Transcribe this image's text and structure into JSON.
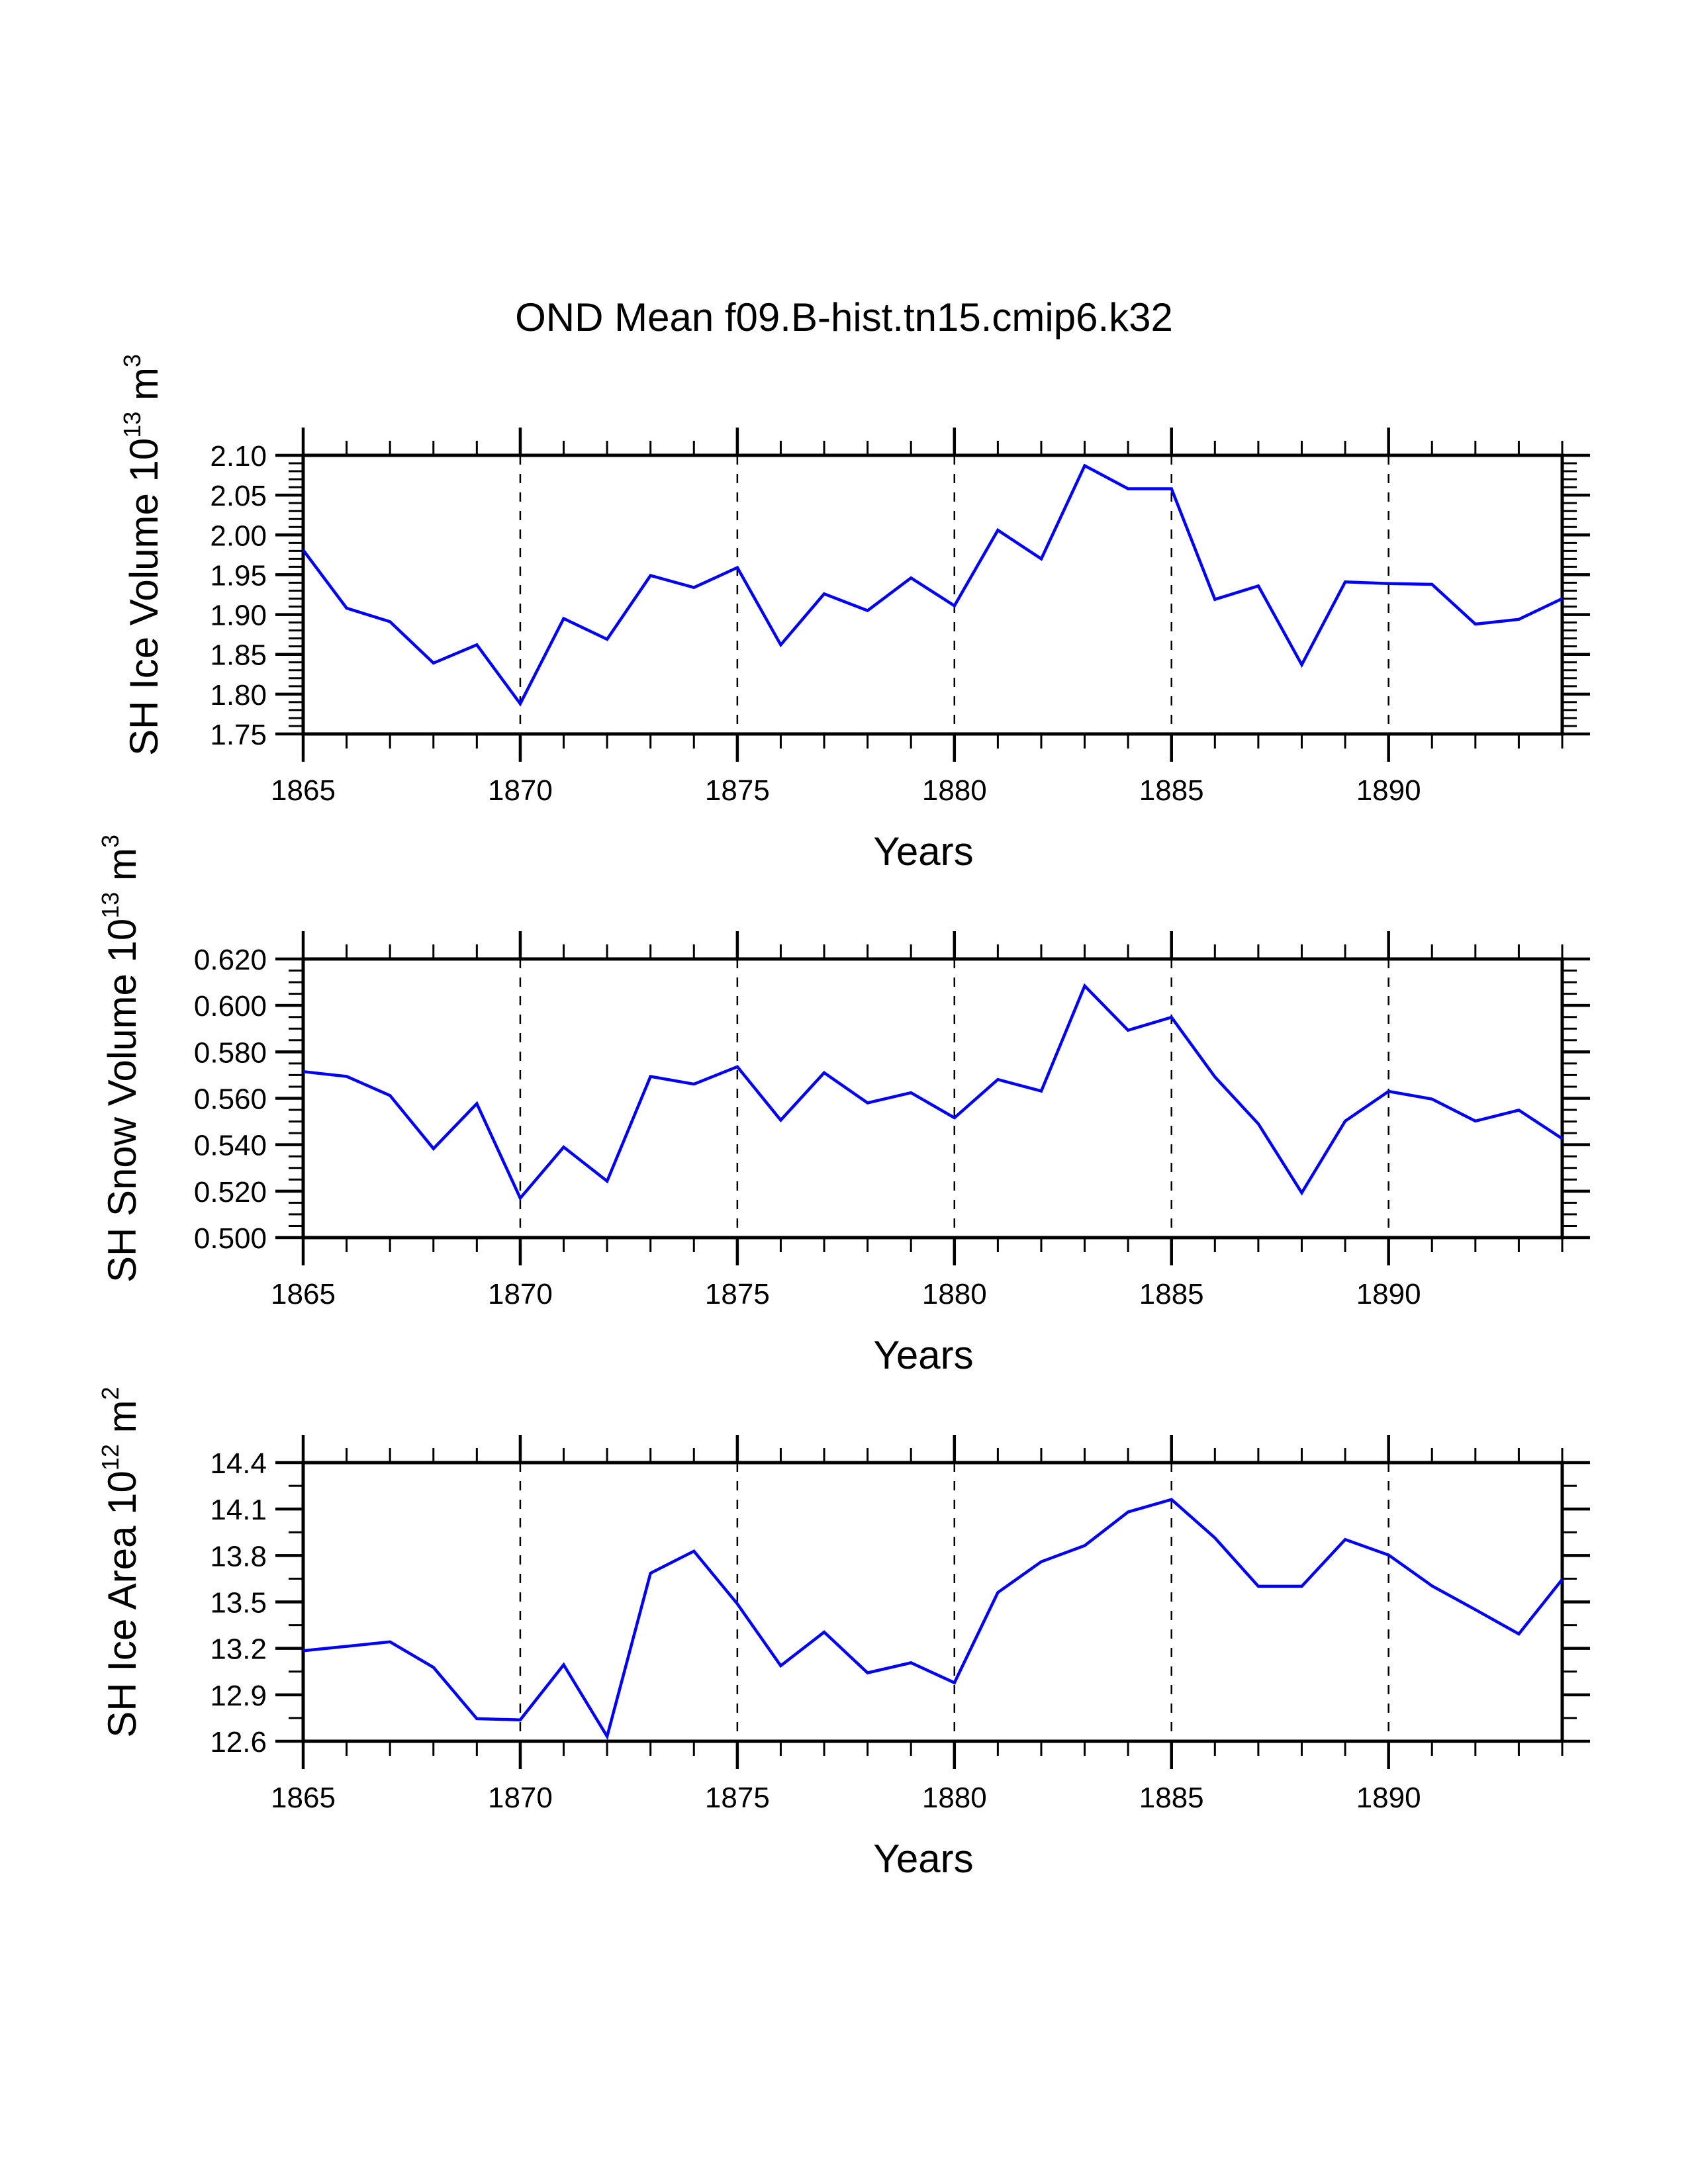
{
  "figure": {
    "title": "OND Mean f09.B-hist.tn15.cmip6.k32"
  },
  "chart_data": [
    {
      "type": "line",
      "panel": "sh-ice-volume",
      "title": "OND Mean f09.B-hist.tn15.cmip6.k32",
      "xlabel": "Years",
      "ylabel": {
        "text": "SH Ice Volume 10",
        "exponent": "13",
        "unit": " m",
        "unit_exponent": "3"
      },
      "xlim": [
        1865,
        1894
      ],
      "ylim": [
        1.75,
        2.1
      ],
      "xticks": [
        "1865",
        "1870",
        "1875",
        "1880",
        "1885",
        "1890"
      ],
      "xtick_values": [
        1865,
        1870,
        1875,
        1880,
        1885,
        1890
      ],
      "xminor_step": 1,
      "yticks": [
        "1.75",
        "1.80",
        "1.85",
        "1.90",
        "1.95",
        "2.00",
        "2.05",
        "2.10"
      ],
      "ytick_values": [
        1.75,
        1.8,
        1.85,
        1.9,
        1.95,
        2.0,
        2.05,
        2.1
      ],
      "yminor_per_major": 5,
      "grid": "dashed vertical lines at major x ticks",
      "line_color": "#0000ff",
      "x": [
        1865,
        1866,
        1867,
        1868,
        1869,
        1870,
        1871,
        1872,
        1873,
        1874,
        1875,
        1876,
        1877,
        1878,
        1879,
        1880,
        1881,
        1882,
        1883,
        1884,
        1885,
        1886,
        1887,
        1888,
        1889,
        1890,
        1891,
        1892,
        1893,
        1894
      ],
      "values": [
        1.981,
        1.908,
        1.891,
        1.839,
        1.862,
        1.788,
        1.895,
        1.869,
        1.949,
        1.934,
        1.959,
        1.862,
        1.926,
        1.905,
        1.946,
        1.911,
        2.006,
        1.97,
        2.087,
        2.058,
        2.058,
        1.919,
        1.936,
        1.837,
        1.941,
        1.939,
        1.938,
        1.888,
        1.894,
        1.92
      ]
    },
    {
      "type": "line",
      "panel": "sh-snow-volume",
      "xlabel": "Years",
      "ylabel": {
        "text": "SH Snow Volume 10",
        "exponent": "13",
        "unit": " m",
        "unit_exponent": "3"
      },
      "xlim": [
        1865,
        1894
      ],
      "ylim": [
        0.5,
        0.62
      ],
      "xticks": [
        "1865",
        "1870",
        "1875",
        "1880",
        "1885",
        "1890"
      ],
      "xtick_values": [
        1865,
        1870,
        1875,
        1880,
        1885,
        1890
      ],
      "xminor_step": 1,
      "yticks": [
        "0.500",
        "0.520",
        "0.540",
        "0.560",
        "0.580",
        "0.600",
        "0.620"
      ],
      "ytick_values": [
        0.5,
        0.52,
        0.54,
        0.56,
        0.58,
        0.6,
        0.62
      ],
      "yminor_per_major": 4,
      "grid": "dashed vertical lines at major x ticks",
      "line_color": "#0000ff",
      "x": [
        1865,
        1866,
        1867,
        1868,
        1869,
        1870,
        1871,
        1872,
        1873,
        1874,
        1875,
        1876,
        1877,
        1878,
        1879,
        1880,
        1881,
        1882,
        1883,
        1884,
        1885,
        1886,
        1887,
        1888,
        1889,
        1890,
        1891,
        1892,
        1893,
        1894
      ],
      "values": [
        0.5715,
        0.5694,
        0.5612,
        0.5383,
        0.5577,
        0.517,
        0.539,
        0.5243,
        0.5694,
        0.5661,
        0.5736,
        0.5506,
        0.571,
        0.558,
        0.5624,
        0.5516,
        0.5681,
        0.5631,
        0.6084,
        0.5893,
        0.5949,
        0.5692,
        0.549,
        0.5193,
        0.5502,
        0.563,
        0.5597,
        0.5502,
        0.5549,
        0.5426
      ]
    },
    {
      "type": "line",
      "panel": "sh-ice-area",
      "xlabel": "Years",
      "ylabel": {
        "text": "SH Ice Area 10",
        "exponent": "12",
        "unit": " m",
        "unit_exponent": "2"
      },
      "xlim": [
        1865,
        1894
      ],
      "ylim": [
        12.6,
        14.4
      ],
      "xticks": [
        "1865",
        "1870",
        "1875",
        "1880",
        "1885",
        "1890"
      ],
      "xtick_values": [
        1865,
        1870,
        1875,
        1880,
        1885,
        1890
      ],
      "xminor_step": 1,
      "yticks": [
        "12.6",
        "12.9",
        "13.2",
        "13.5",
        "13.8",
        "14.1",
        "14.4"
      ],
      "ytick_values": [
        12.6,
        12.9,
        13.2,
        13.5,
        13.8,
        14.1,
        14.4
      ],
      "yminor_per_major": 2,
      "grid": "dashed vertical lines at major x ticks",
      "line_color": "#0000ff",
      "x": [
        1865,
        1866,
        1867,
        1868,
        1869,
        1870,
        1871,
        1872,
        1873,
        1874,
        1875,
        1876,
        1877,
        1878,
        1879,
        1880,
        1881,
        1882,
        1883,
        1884,
        1885,
        1886,
        1887,
        1888,
        1889,
        1890,
        1891,
        1892,
        1893,
        1894
      ],
      "values": [
        13.185,
        13.213,
        13.242,
        13.077,
        12.746,
        12.738,
        13.094,
        12.631,
        13.686,
        13.828,
        13.487,
        13.088,
        13.305,
        13.042,
        13.107,
        12.978,
        13.561,
        13.76,
        13.864,
        14.081,
        14.162,
        13.914,
        13.601,
        13.601,
        13.903,
        13.803,
        13.604,
        13.45,
        13.293,
        13.646
      ]
    }
  ]
}
